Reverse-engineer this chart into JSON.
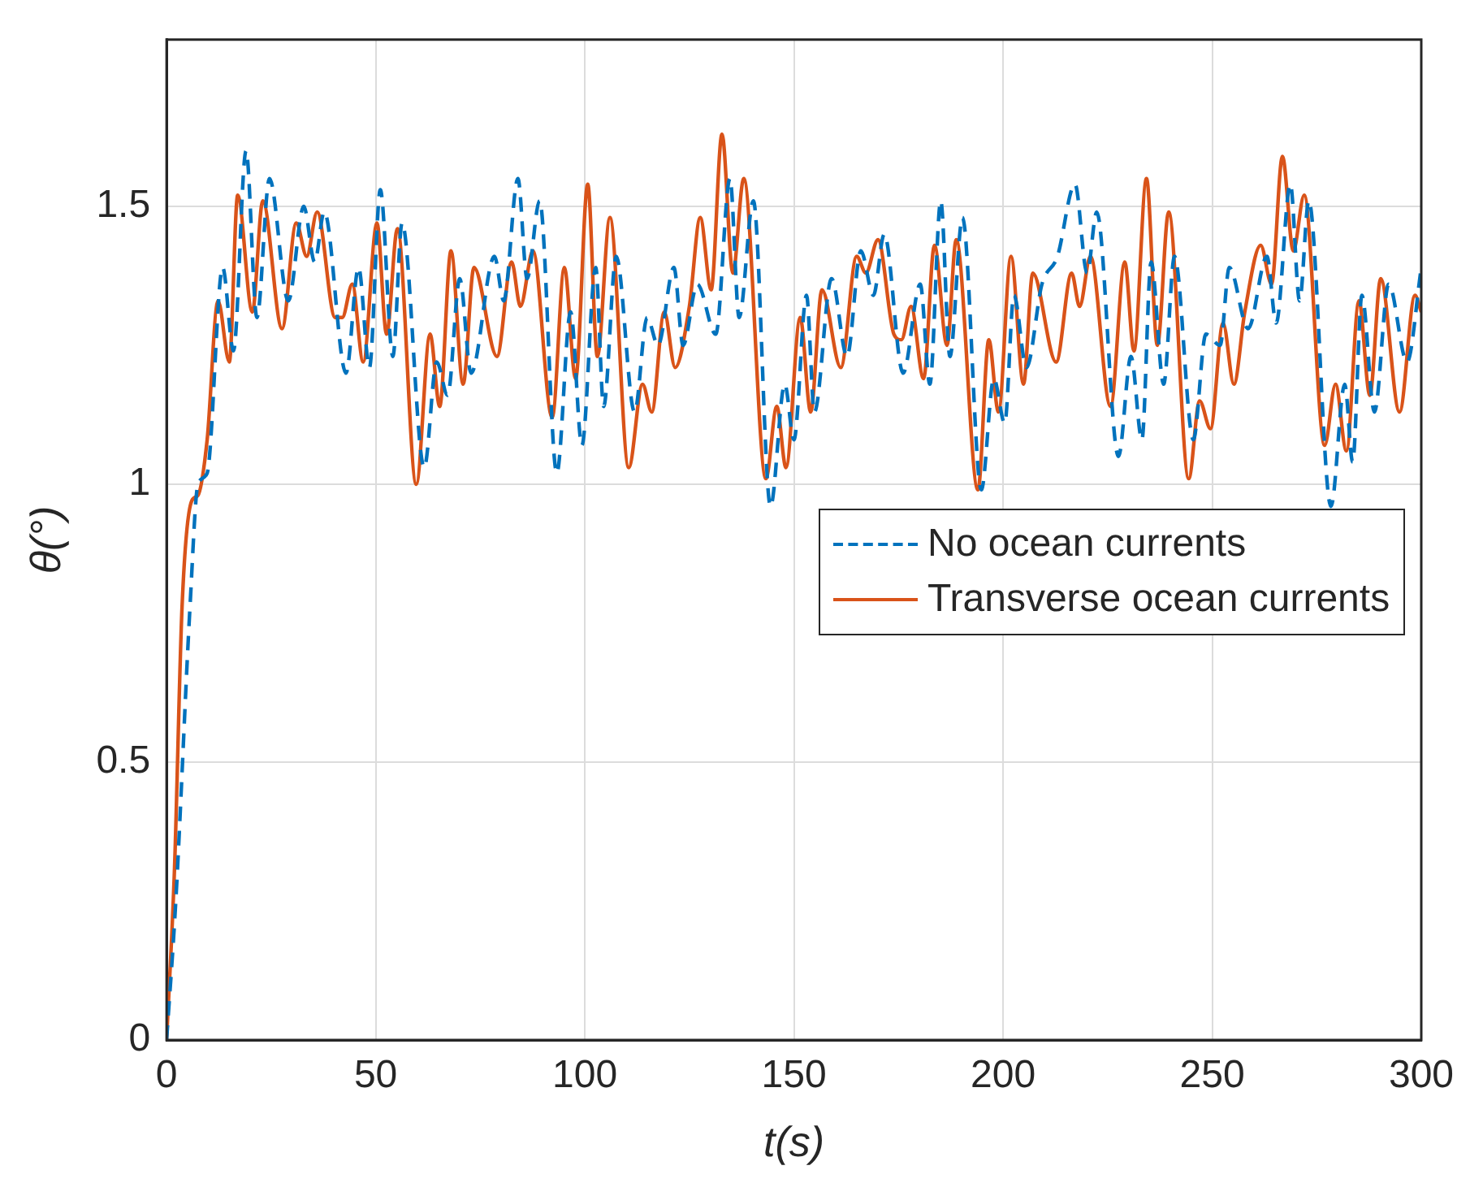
{
  "chart_data": {
    "type": "line",
    "xlabel": "t(s)",
    "ylabel": "θ(°)",
    "xlim": [
      0,
      300
    ],
    "xticks": [
      0,
      50,
      100,
      150,
      200,
      250,
      300
    ],
    "ylim": [
      0,
      1.8
    ],
    "yticks": [
      0,
      0.5,
      1,
      1.5
    ],
    "grid": true,
    "legend": "right",
    "marker": "none",
    "series": [
      {
        "name": "No ocean currents",
        "color": "#0072bd",
        "line_style": "dashed",
        "x": [
          0,
          2.2,
          5.6,
          7.5,
          9.7,
          13.4,
          16,
          19,
          21.6,
          24.6,
          29.1,
          32.8,
          35.4,
          37.7,
          42.9,
          45.9,
          48.5,
          51.1,
          54.1,
          56.3,
          61.6,
          64.6,
          67.2,
          70.1,
          72.8,
          78.4,
          80.6,
          84,
          86.2,
          89.2,
          93.3,
          96.6,
          99.3,
          102.6,
          104.5,
          107.5,
          111.9,
          114.9,
          117.5,
          121.3,
          123.5,
          126.9,
          131.3,
          134.7,
          136.9,
          140.3,
          144.4,
          147.8,
          150,
          153,
          154.9,
          159,
          162.7,
          166,
          169,
          171.6,
          176.1,
          180.2,
          182.5,
          185.1,
          187.3,
          190.3,
          194.8,
          197.8,
          200.4,
          202.6,
          205.6,
          209.3,
          213,
          217.2,
          220.1,
          222.4,
          227.6,
          230.6,
          233.2,
          235.4,
          238.4,
          241,
          245.5,
          248.5,
          251.9,
          254.1,
          258.6,
          263.1,
          265.3,
          268.7,
          270.9,
          273.1,
          278.4,
          281.7,
          283.6,
          285.8,
          288.8,
          292.2,
          296.6,
          300
        ],
        "values": [
          0,
          0.25,
          0.78,
          1,
          1.02,
          1.39,
          1.24,
          1.6,
          1.3,
          1.55,
          1.33,
          1.5,
          1.4,
          1.49,
          1.2,
          1.39,
          1.21,
          1.53,
          1.23,
          1.47,
          1.03,
          1.22,
          1.16,
          1.37,
          1.2,
          1.41,
          1.33,
          1.55,
          1.37,
          1.51,
          1.02,
          1.31,
          1.07,
          1.39,
          1.14,
          1.41,
          1.13,
          1.3,
          1.25,
          1.39,
          1.25,
          1.36,
          1.27,
          1.55,
          1.3,
          1.51,
          0.96,
          1.18,
          1.08,
          1.34,
          1.13,
          1.37,
          1.23,
          1.42,
          1.34,
          1.45,
          1.2,
          1.36,
          1.18,
          1.51,
          1.23,
          1.48,
          0.99,
          1.19,
          1.11,
          1.34,
          1.21,
          1.36,
          1.41,
          1.54,
          1.38,
          1.49,
          1.05,
          1.23,
          1.08,
          1.4,
          1.18,
          1.41,
          1.08,
          1.27,
          1.25,
          1.39,
          1.28,
          1.41,
          1.29,
          1.54,
          1.33,
          1.51,
          0.96,
          1.18,
          1.04,
          1.34,
          1.13,
          1.36,
          1.22,
          1.39
        ]
      },
      {
        "name": "Transverse ocean currents",
        "color": "#d95319",
        "line_style": "solid",
        "x": [
          0,
          1.9,
          3.7,
          6,
          7.5,
          9.7,
          12.3,
          15,
          17,
          20.5,
          23,
          27.6,
          31,
          33.5,
          36,
          40.3,
          42,
          44.4,
          47,
          50.3,
          52.6,
          55.2,
          59.7,
          63,
          65.3,
          68,
          70.9,
          73.5,
          79,
          82.5,
          84.6,
          87.6,
          92.2,
          95.1,
          97.8,
          100.7,
          103,
          106,
          110.5,
          113.8,
          116,
          119,
          121.6,
          125,
          127.6,
          130.2,
          132.8,
          135.4,
          138,
          143.3,
          145.9,
          148.1,
          151.5,
          154,
          156.7,
          161.2,
          165,
          167.2,
          170.1,
          173.9,
          175.7,
          178,
          181,
          183.6,
          186.6,
          188.8,
          194,
          196.6,
          198.9,
          201.9,
          204.9,
          207.1,
          212.7,
          216.4,
          218.3,
          220.9,
          225.7,
          229.1,
          231.3,
          234.3,
          236.9,
          239.6,
          244.4,
          247,
          249.6,
          252.6,
          255.2,
          257.8,
          261.6,
          264.2,
          266.8,
          269.4,
          272,
          276.9,
          279.5,
          282.1,
          285.1,
          287.7,
          290.3,
          294.8,
          298.5,
          300
        ],
        "values": [
          0,
          0.31,
          0.78,
          0.97,
          0.98,
          1.08,
          1.33,
          1.22,
          1.52,
          1.31,
          1.51,
          1.28,
          1.47,
          1.41,
          1.49,
          1.3,
          1.3,
          1.36,
          1.22,
          1.47,
          1.27,
          1.46,
          1,
          1.27,
          1.14,
          1.42,
          1.18,
          1.39,
          1.23,
          1.4,
          1.32,
          1.42,
          1.12,
          1.39,
          1.19,
          1.54,
          1.23,
          1.48,
          1.03,
          1.18,
          1.13,
          1.31,
          1.21,
          1.32,
          1.48,
          1.35,
          1.63,
          1.38,
          1.55,
          1.01,
          1.14,
          1.03,
          1.3,
          1.13,
          1.35,
          1.21,
          1.41,
          1.38,
          1.44,
          1.27,
          1.26,
          1.32,
          1.19,
          1.43,
          1.25,
          1.44,
          0.99,
          1.26,
          1.13,
          1.41,
          1.18,
          1.38,
          1.22,
          1.38,
          1.32,
          1.41,
          1.14,
          1.4,
          1.24,
          1.55,
          1.25,
          1.49,
          1.01,
          1.15,
          1.1,
          1.29,
          1.18,
          1.31,
          1.43,
          1.36,
          1.59,
          1.42,
          1.52,
          1.07,
          1.18,
          1.06,
          1.33,
          1.16,
          1.37,
          1.13,
          1.34,
          1.31
        ]
      }
    ]
  }
}
